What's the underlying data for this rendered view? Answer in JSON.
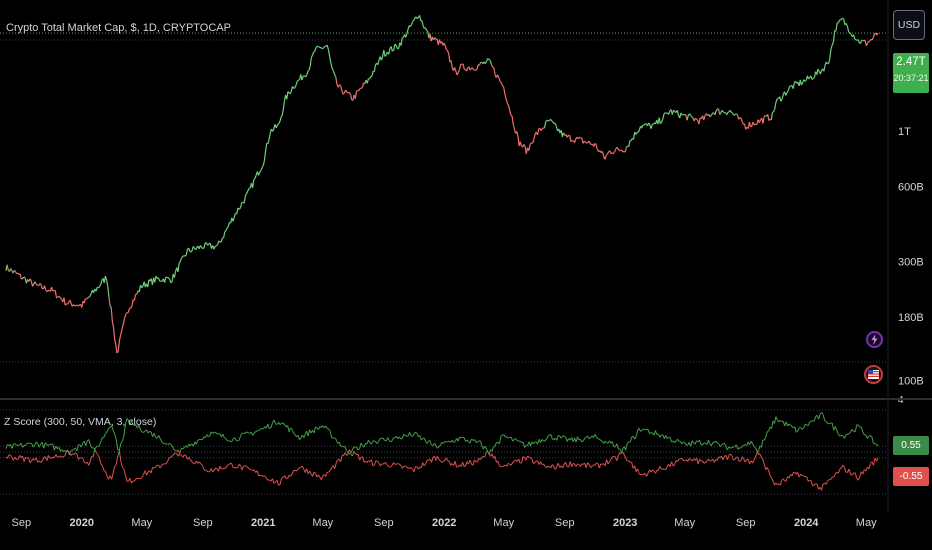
{
  "header": {
    "title": "Crypto Total Market Cap, $, 1D, CRYPTOCAP",
    "currency": "USD"
  },
  "price_badge": {
    "price": "2.47T",
    "countdown": "20:37:21"
  },
  "indicator": {
    "title": "Z Score (300, 50, VMA, 3, close)",
    "upper_value": "0.55",
    "lower_value": "-0.55",
    "scale_label": "4"
  },
  "icons": {
    "top": "lightning-icon",
    "bottom": "us-flag-icon"
  },
  "colors": {
    "background": "#000000",
    "up": "#6fcf7d",
    "down": "#f0706f",
    "z_green": "#43a047",
    "z_red": "#e0514e",
    "text": "#d1d4dc",
    "price_badge": "#3fae4d"
  },
  "chart_data": [
    {
      "type": "line",
      "title": "Crypto Total Market Cap, $, 1D, CRYPTOCAP",
      "y_scale": "log",
      "ylim": [
        90,
        3000
      ],
      "y_ticks": [
        {
          "value": 2470,
          "label": "2.47T"
        },
        {
          "value": 1000,
          "label": "1T"
        },
        {
          "value": 600,
          "label": "600B"
        },
        {
          "value": 300,
          "label": "300B"
        },
        {
          "value": 180,
          "label": "180B"
        },
        {
          "value": 100,
          "label": "100B"
        }
      ],
      "x_ticks": [
        "Sep",
        "2020",
        "May",
        "Sep",
        "2021",
        "May",
        "Sep",
        "2022",
        "May",
        "Sep",
        "2023",
        "May",
        "Sep",
        "2024",
        "May"
      ],
      "x": [
        "2019-08-01",
        "2019-09-01",
        "2019-10-01",
        "2019-11-01",
        "2019-12-01",
        "2020-01-01",
        "2020-02-01",
        "2020-02-20",
        "2020-03-12",
        "2020-04-01",
        "2020-05-01",
        "2020-06-01",
        "2020-07-01",
        "2020-08-01",
        "2020-09-01",
        "2020-10-01",
        "2020-11-01",
        "2020-12-01",
        "2021-01-01",
        "2021-01-15",
        "2021-02-01",
        "2021-02-15",
        "2021-03-01",
        "2021-04-01",
        "2021-04-15",
        "2021-05-10",
        "2021-05-20",
        "2021-06-01",
        "2021-07-01",
        "2021-07-20",
        "2021-08-01",
        "2021-09-01",
        "2021-10-01",
        "2021-11-01",
        "2021-11-10",
        "2021-12-01",
        "2022-01-01",
        "2022-01-24",
        "2022-02-01",
        "2022-03-01",
        "2022-04-01",
        "2022-05-01",
        "2022-06-01",
        "2022-06-18",
        "2022-07-01",
        "2022-08-01",
        "2022-09-01",
        "2022-10-01",
        "2022-11-01",
        "2022-11-21",
        "2022-12-01",
        "2023-01-01",
        "2023-02-01",
        "2023-03-01",
        "2023-04-01",
        "2023-05-01",
        "2023-06-01",
        "2023-07-01",
        "2023-08-01",
        "2023-09-01",
        "2023-10-01",
        "2023-10-25",
        "2023-11-01",
        "2023-12-01",
        "2024-01-01",
        "2024-02-01",
        "2024-02-15",
        "2024-03-01",
        "2024-03-14",
        "2024-04-01",
        "2024-04-15",
        "2024-05-01",
        "2024-05-15",
        "2024-05-25"
      ],
      "series": [
        {
          "values": [
            285,
            260,
            240,
            230,
            205,
            200,
            235,
            260,
            128,
            190,
            240,
            255,
            255,
            330,
            345,
            345,
            450,
            560,
            750,
            1000,
            1050,
            1350,
            1500,
            1750,
            2100,
            2200,
            1750,
            1500,
            1350,
            1500,
            1600,
            2050,
            2200,
            2750,
            2950,
            2400,
            2200,
            1700,
            1800,
            1800,
            1900,
            1500,
            900,
            830,
            950,
            1100,
            950,
            920,
            880,
            780,
            830,
            850,
            1050,
            1050,
            1200,
            1150,
            1100,
            1200,
            1200,
            1050,
            1100,
            1150,
            1300,
            1500,
            1600,
            1750,
            1900,
            2600,
            2800,
            2500,
            2300,
            2250,
            2350,
            2470
          ]
        }
      ]
    },
    {
      "type": "line",
      "title": "Z Score (300, 50, VMA, 3, close)",
      "ylim": [
        -4,
        4
      ],
      "x": [
        "2019-08-01",
        "2019-10-01",
        "2019-12-01",
        "2020-01-15",
        "2020-03-01",
        "2020-04-01",
        "2020-06-01",
        "2020-08-01",
        "2020-09-15",
        "2020-11-01",
        "2021-01-01",
        "2021-02-01",
        "2021-03-15",
        "2021-05-01",
        "2021-06-15",
        "2021-08-01",
        "2021-09-15",
        "2021-11-01",
        "2021-12-15",
        "2022-02-01",
        "2022-03-15",
        "2022-05-01",
        "2022-06-15",
        "2022-08-01",
        "2022-09-15",
        "2022-11-01",
        "2022-12-15",
        "2023-02-01",
        "2023-03-15",
        "2023-05-01",
        "2023-06-15",
        "2023-08-01",
        "2023-09-15",
        "2023-11-01",
        "2023-12-15",
        "2024-02-01",
        "2024-03-15",
        "2024-04-15",
        "2024-05-25"
      ],
      "series": [
        {
          "name": "",
          "values": [
            0.4,
            0.8,
            0.2,
            -1.0,
            2.8,
            -2.9,
            -1.5,
            0.5,
            1.8,
            1.2,
            2.2,
            3.0,
            1.4,
            2.5,
            0.3,
            -1.0,
            -1.2,
            -1.7,
            -0.5,
            -1.3,
            -0.8,
            1.5,
            0.6,
            1.5,
            1.1,
            1.4,
            0.6,
            -2.2,
            -1.6,
            -0.7,
            -1.0,
            -0.4,
            -0.9,
            3.2,
            2.0,
            3.5,
            1.5,
            2.4,
            0.55
          ]
        },
        {
          "name": "",
          "values": [
            -0.4,
            -0.8,
            -0.2,
            1.0,
            -2.8,
            2.9,
            1.5,
            -0.5,
            -1.8,
            -1.2,
            -2.2,
            -3.0,
            -1.4,
            -2.5,
            -0.3,
            1.0,
            1.2,
            1.7,
            0.5,
            1.3,
            0.8,
            -1.5,
            -0.6,
            -1.5,
            -1.1,
            -1.4,
            -0.6,
            2.2,
            1.6,
            0.7,
            1.0,
            0.4,
            0.9,
            -3.2,
            -2.0,
            -3.5,
            -1.5,
            -2.4,
            -0.55
          ]
        }
      ]
    }
  ]
}
